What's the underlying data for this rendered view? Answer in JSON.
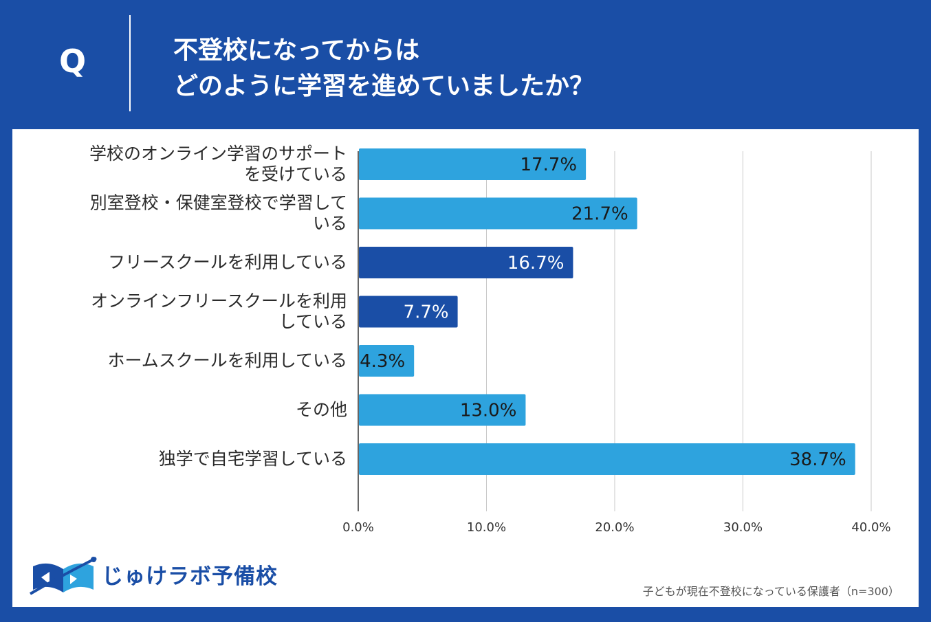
{
  "header": {
    "q_letter": "Q",
    "title_line1": "不登校になってからは",
    "title_line2": "どのように学習を進めていましたか？"
  },
  "chart_data": {
    "type": "bar",
    "orientation": "horizontal",
    "categories": [
      [
        "学校のオンライン学習のサポート",
        "を受けている"
      ],
      [
        "別室登校・保健室登校で学習して",
        "いる"
      ],
      [
        "フリースクールを利用している"
      ],
      [
        "オンラインフリースクールを利用",
        "している"
      ],
      [
        "ホームスクールを利用している"
      ],
      [
        "その他"
      ],
      [
        "独学で自宅学習している"
      ]
    ],
    "values": [
      17.7,
      21.7,
      16.7,
      7.7,
      4.3,
      13.0,
      38.7
    ],
    "value_labels": [
      "17.7%",
      "21.7%",
      "16.7%",
      "7.7%",
      "4.3%",
      "13.0%",
      "38.7%"
    ],
    "bar_colors": [
      "#2ea3de",
      "#2ea3de",
      "#1a4ea6",
      "#1a4ea6",
      "#2ea3de",
      "#2ea3de",
      "#2ea3de"
    ],
    "label_colors": [
      "#1a1a1a",
      "#1a1a1a",
      "#ffffff",
      "#ffffff",
      "#1a1a1a",
      "#1a1a1a",
      "#1a1a1a"
    ],
    "xlim": [
      0,
      40
    ],
    "xticks": [
      0,
      10,
      20,
      30,
      40
    ],
    "xtick_labels": [
      "0.0%",
      "10.0%",
      "20.0%",
      "30.0%",
      "40.0%"
    ],
    "grid": true
  },
  "footer": {
    "logo_text": "じゅけラボ予備校",
    "note": "子どもが現在不登校になっている保護者（n=300）"
  },
  "colors": {
    "brand_blue": "#1a4ea6",
    "light_blue": "#2ea3de"
  }
}
